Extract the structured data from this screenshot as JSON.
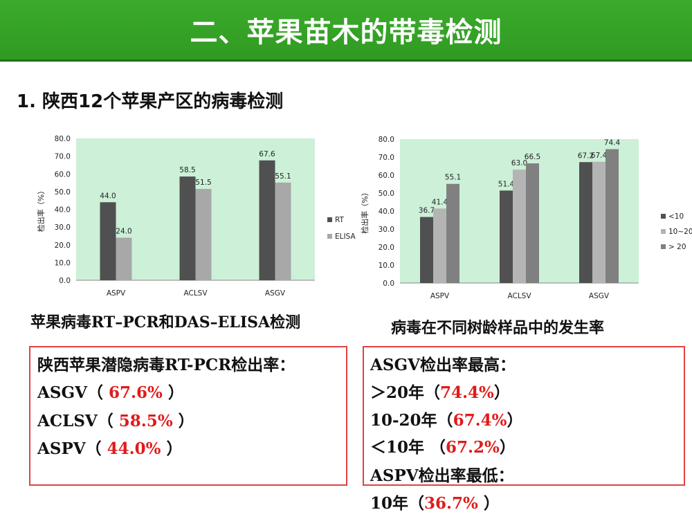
{
  "slide": {
    "title": "二、苹果苗木的带毒检测",
    "subtitle": "1. 陕西12个苹果产区的病毒检测",
    "colors": {
      "title_bg": "#33a126",
      "chart_bg": "#ccf0d8",
      "box_border": "#e34040",
      "highlight": "#e01b1b"
    }
  },
  "chart_data": [
    {
      "type": "bar",
      "categories": [
        "ASPV",
        "ACLSV",
        "ASGV"
      ],
      "series": [
        {
          "name": "RT",
          "values": [
            44.0,
            58.5,
            67.6
          ],
          "labels": [
            "44.0",
            "58.5",
            "67.6"
          ],
          "color": "#505050"
        },
        {
          "name": "ELISA",
          "values": [
            24.0,
            51.5,
            55.1
          ],
          "labels": [
            "24.0",
            "51.5",
            "55.1"
          ],
          "color": "#a8a8a8"
        }
      ],
      "ylabel": "检出率（%）",
      "ylim": [
        0,
        80
      ],
      "yticks": [
        "0.0",
        "10.0",
        "20.0",
        "30.0",
        "40.0",
        "50.0",
        "60.0",
        "70.0",
        "80.0"
      ],
      "legend": "right",
      "grid": false
    },
    {
      "type": "bar",
      "categories": [
        "ASPV",
        "ACLSV",
        "ASGV"
      ],
      "series": [
        {
          "name": "<10",
          "values": [
            36.7,
            51.4,
            67.2
          ],
          "labels": [
            "36.7",
            "51.4",
            "67.2"
          ],
          "color": "#505050"
        },
        {
          "name": "10~20",
          "values": [
            41.4,
            63.0,
            67.4
          ],
          "labels": [
            "41.4",
            "63.0",
            "67.4"
          ],
          "color": "#b4b4b4"
        },
        {
          "name": "> 20",
          "values": [
            55.1,
            66.5,
            74.4
          ],
          "labels": [
            "55.1",
            "66.5",
            "74.4"
          ],
          "color": "#808080"
        }
      ],
      "ylabel": "检出率（%）",
      "ylim": [
        0,
        80
      ],
      "yticks": [
        "0.0",
        "10.0",
        "20.0",
        "30.0",
        "40.0",
        "50.0",
        "60.0",
        "70.0",
        "80.0"
      ],
      "legend": "right",
      "grid": false
    }
  ],
  "captions": {
    "left": "苹果病毒RT–PCR和DAS–ELISA检测",
    "right": "病毒在不同树龄样品中的发生率"
  },
  "left_box": {
    "heading": "陕西苹果潜隐病毒RT-PCR检出率：",
    "items": [
      {
        "name": "ASGV（ ",
        "value": "67.6%",
        "close": " ）"
      },
      {
        "name": "ACLSV（ ",
        "value": "58.5%",
        "close": " ）"
      },
      {
        "name": " ASPV（ ",
        "value": "44.0%",
        "close": " ）"
      }
    ]
  },
  "right_box": {
    "heading1": "ASGV检出率最高：",
    "items": [
      {
        "name": "＞20年（",
        "value": "74.4%",
        "close": "）"
      },
      {
        "name": "10-20年（",
        "value": "67.4%",
        "close": "）"
      },
      {
        "name": "＜10年  （",
        "value": "67.2%",
        "close": "）"
      }
    ],
    "heading2": "ASPV检出率最低：",
    "last": {
      "name": "10年（",
      "value": "36.7%",
      "close": " ）"
    }
  }
}
